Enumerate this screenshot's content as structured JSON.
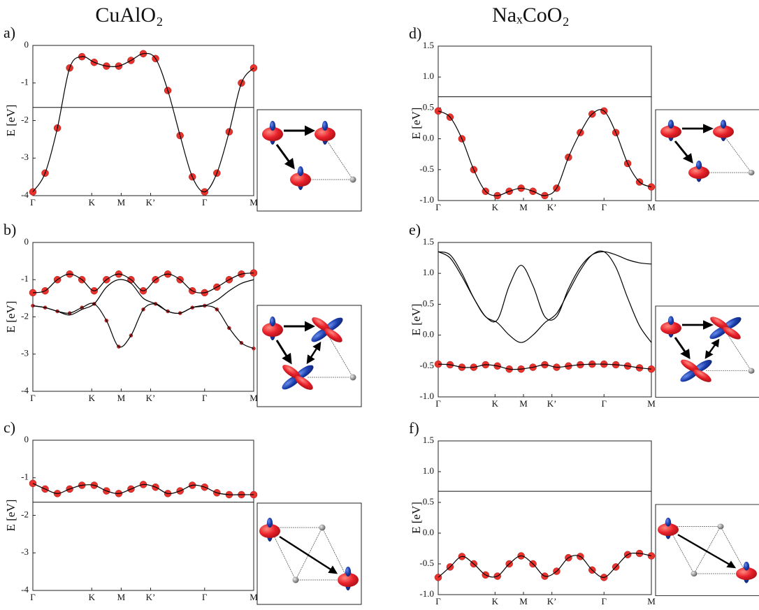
{
  "chart_data": [
    {
      "type": "line",
      "title": "CuAlO₂",
      "panel_label": "a)",
      "y_label": "E [eV]",
      "x": [
        0,
        0.25,
        0.5,
        0.75,
        1,
        1.25,
        1.5,
        1.75,
        2,
        2.25,
        2.5,
        2.75,
        3,
        3.25,
        3.5,
        3.75,
        4,
        4.25,
        4.5
      ],
      "xlim": [
        0,
        4.5
      ],
      "xticks": [
        {
          "value": 0,
          "label": "Γ"
        },
        {
          "value": 1.2,
          "label": "K"
        },
        {
          "value": 1.8,
          "label": "M"
        },
        {
          "value": 2.4,
          "label": "K’"
        },
        {
          "value": 3.5,
          "label": "Γ"
        },
        {
          "value": 4.5,
          "label": "M"
        }
      ],
      "ylim": [
        -4,
        0
      ],
      "yticks": [
        -4,
        -3,
        -2,
        -1,
        0
      ],
      "reference_line": -1.65,
      "series": [
        {
          "color": "#e8332d",
          "markers": true,
          "marker_size": 5,
          "values": [
            -3.9,
            -3.4,
            -2.2,
            -0.6,
            -0.3,
            -0.45,
            -0.55,
            -0.55,
            -0.4,
            -0.22,
            -0.35,
            -1.2,
            -2.4,
            -3.5,
            -3.9,
            -3.4,
            -2.3,
            -1.0,
            -0.6
          ]
        }
      ]
    },
    {
      "type": "line",
      "panel_label": "b)",
      "y_label": "E [eV]",
      "x": [
        0,
        0.25,
        0.5,
        0.75,
        1,
        1.25,
        1.5,
        1.75,
        2,
        2.25,
        2.5,
        2.75,
        3,
        3.25,
        3.5,
        3.75,
        4,
        4.25,
        4.5
      ],
      "xlim": [
        0,
        4.5
      ],
      "xticks": [
        {
          "value": 0,
          "label": "Γ"
        },
        {
          "value": 1.2,
          "label": "K"
        },
        {
          "value": 1.8,
          "label": "M"
        },
        {
          "value": 2.4,
          "label": "K’"
        },
        {
          "value": 3.5,
          "label": "Γ"
        },
        {
          "value": 4.5,
          "label": "M"
        }
      ],
      "ylim": [
        -4,
        0
      ],
      "yticks": [
        -4,
        -3,
        -2,
        -1,
        0
      ],
      "series": [
        {
          "color": "#e8332d",
          "markers": true,
          "marker_size": 5,
          "values": [
            -1.35,
            -1.3,
            -1.0,
            -0.85,
            -1.0,
            -1.3,
            -1.0,
            -0.85,
            -1.0,
            -1.3,
            -1.0,
            -0.85,
            -1.0,
            -1.3,
            -1.35,
            -1.2,
            -1.0,
            -0.85,
            -0.82
          ]
        },
        {
          "color": "#c0282a",
          "markers": true,
          "marker_size": 2.5,
          "values": [
            -1.7,
            -1.75,
            -1.85,
            -1.9,
            -1.75,
            -1.65,
            -2.1,
            -2.8,
            -2.5,
            -1.8,
            -1.65,
            -1.85,
            -1.9,
            -1.75,
            -1.7,
            -1.8,
            -2.3,
            -2.7,
            -2.85
          ]
        },
        {
          "color": "#e8332d",
          "markers": false,
          "marker_size": 0,
          "values": [
            -1.7,
            -1.75,
            -1.85,
            -1.95,
            -1.8,
            -1.65,
            -1.2,
            -1.0,
            -1.1,
            -1.5,
            -1.65,
            -1.85,
            -1.9,
            -1.75,
            -1.7,
            -1.55,
            -1.3,
            -1.1,
            -1.0
          ]
        }
      ]
    },
    {
      "type": "line",
      "panel_label": "c)",
      "y_label": "E [eV]",
      "x": [
        0,
        0.25,
        0.5,
        0.75,
        1,
        1.25,
        1.5,
        1.75,
        2,
        2.25,
        2.5,
        2.75,
        3,
        3.25,
        3.5,
        3.75,
        4,
        4.25,
        4.5
      ],
      "xlim": [
        0,
        4.5
      ],
      "xticks": [
        {
          "value": 0,
          "label": "Γ"
        },
        {
          "value": 1.2,
          "label": "K"
        },
        {
          "value": 1.8,
          "label": "M"
        },
        {
          "value": 2.4,
          "label": "K’"
        },
        {
          "value": 3.5,
          "label": "Γ"
        },
        {
          "value": 4.5,
          "label": "M"
        }
      ],
      "ylim": [
        -4,
        0
      ],
      "yticks": [
        -4,
        -3,
        -2,
        -1,
        0
      ],
      "reference_line": -1.65,
      "series": [
        {
          "color": "#e8332d",
          "markers": true,
          "marker_size": 5,
          "values": [
            -1.15,
            -1.3,
            -1.42,
            -1.3,
            -1.2,
            -1.2,
            -1.35,
            -1.42,
            -1.3,
            -1.18,
            -1.25,
            -1.42,
            -1.35,
            -1.2,
            -1.25,
            -1.4,
            -1.45,
            -1.45,
            -1.45
          ]
        }
      ]
    },
    {
      "type": "line",
      "title": "NaₓCoO₂",
      "panel_label": "d)",
      "y_label": "E [eV]",
      "x": [
        0,
        0.25,
        0.5,
        0.75,
        1,
        1.25,
        1.5,
        1.75,
        2,
        2.25,
        2.5,
        2.75,
        3,
        3.25,
        3.5,
        3.75,
        4,
        4.25,
        4.5
      ],
      "xlim": [
        0,
        4.5
      ],
      "xticks": [
        {
          "value": 0,
          "label": "Γ"
        },
        {
          "value": 1.2,
          "label": "K"
        },
        {
          "value": 1.8,
          "label": "M"
        },
        {
          "value": 2.4,
          "label": "K’"
        },
        {
          "value": 3.5,
          "label": "Γ"
        },
        {
          "value": 4.5,
          "label": "M"
        }
      ],
      "ylim": [
        -1,
        1.5
      ],
      "yticks": [
        {
          "value": -1,
          "label": "-1.0"
        },
        -0.5,
        {
          "value": 0,
          "label": "0.0"
        },
        0.5,
        {
          "value": 1,
          "label": "1.0"
        },
        1.5
      ],
      "reference_line": 0.68,
      "series": [
        {
          "color": "#e8332d",
          "markers": true,
          "marker_size": 5,
          "values": [
            0.45,
            0.35,
            0.0,
            -0.5,
            -0.85,
            -0.92,
            -0.85,
            -0.8,
            -0.85,
            -0.92,
            -0.8,
            -0.3,
            0.1,
            0.4,
            0.45,
            0.1,
            -0.4,
            -0.7,
            -0.78
          ]
        }
      ]
    },
    {
      "type": "line",
      "panel_label": "e)",
      "y_label": "E [eV]",
      "x": [
        0,
        0.25,
        0.5,
        0.75,
        1,
        1.25,
        1.5,
        1.75,
        2,
        2.25,
        2.5,
        2.75,
        3,
        3.25,
        3.5,
        3.75,
        4,
        4.25,
        4.5
      ],
      "xlim": [
        0,
        4.5
      ],
      "xticks": [
        {
          "value": 0,
          "label": "Γ"
        },
        {
          "value": 1.2,
          "label": "K"
        },
        {
          "value": 1.8,
          "label": "M"
        },
        {
          "value": 2.4,
          "label": "K’"
        },
        {
          "value": 3.5,
          "label": "Γ"
        },
        {
          "value": 4.5,
          "label": "M"
        }
      ],
      "ylim": [
        -1,
        1.5
      ],
      "yticks": [
        {
          "value": -1,
          "label": "-1.0"
        },
        -0.5,
        {
          "value": 0,
          "label": "0.0"
        },
        0.5,
        {
          "value": 1,
          "label": "1.0"
        },
        1.5
      ],
      "series": [
        {
          "color": "#e8332d",
          "markers": true,
          "marker_size": 5,
          "values": [
            -0.47,
            -0.48,
            -0.52,
            -0.52,
            -0.48,
            -0.5,
            -0.55,
            -0.55,
            -0.52,
            -0.48,
            -0.52,
            -0.5,
            -0.48,
            -0.47,
            -0.47,
            -0.48,
            -0.5,
            -0.53,
            -0.55
          ]
        },
        {
          "color": "#e8332d",
          "markers": false,
          "marker_size": 0,
          "values": [
            1.35,
            1.3,
            1.0,
            0.6,
            0.3,
            0.25,
            0.8,
            1.13,
            0.8,
            0.3,
            0.3,
            0.75,
            1.1,
            1.3,
            1.35,
            1.3,
            1.22,
            1.17,
            1.15
          ]
        },
        {
          "color": "#e8332d",
          "markers": false,
          "marker_size": 0,
          "values": [
            1.35,
            1.25,
            0.95,
            0.6,
            0.3,
            0.2,
            0.0,
            -0.12,
            0.0,
            0.2,
            0.35,
            0.7,
            1.05,
            1.3,
            1.35,
            1.1,
            0.6,
            0.15,
            -0.12
          ]
        }
      ]
    },
    {
      "type": "line",
      "panel_label": "f)",
      "y_label": "E [eV]",
      "x": [
        0,
        0.25,
        0.5,
        0.75,
        1,
        1.25,
        1.5,
        1.75,
        2,
        2.25,
        2.5,
        2.75,
        3,
        3.25,
        3.5,
        3.75,
        4,
        4.25,
        4.5
      ],
      "xlim": [
        0,
        4.5
      ],
      "xticks": [
        {
          "value": 0,
          "label": "Γ"
        },
        {
          "value": 1.2,
          "label": "K"
        },
        {
          "value": 1.8,
          "label": "M"
        },
        {
          "value": 2.4,
          "label": "K’"
        },
        {
          "value": 3.5,
          "label": "Γ"
        },
        {
          "value": 4.5,
          "label": "M"
        }
      ],
      "ylim": [
        -1,
        1.5
      ],
      "yticks": [
        {
          "value": -1,
          "label": "-1.0"
        },
        -0.5,
        {
          "value": 0,
          "label": "0.0"
        },
        0.5,
        {
          "value": 1,
          "label": "1.0"
        },
        1.5
      ],
      "reference_line": 0.68,
      "series": [
        {
          "color": "#e8332d",
          "markers": true,
          "marker_size": 5,
          "values": [
            -0.72,
            -0.55,
            -0.38,
            -0.5,
            -0.68,
            -0.7,
            -0.5,
            -0.37,
            -0.5,
            -0.7,
            -0.62,
            -0.4,
            -0.38,
            -0.6,
            -0.72,
            -0.55,
            -0.35,
            -0.33,
            -0.37
          ]
        }
      ]
    }
  ]
}
